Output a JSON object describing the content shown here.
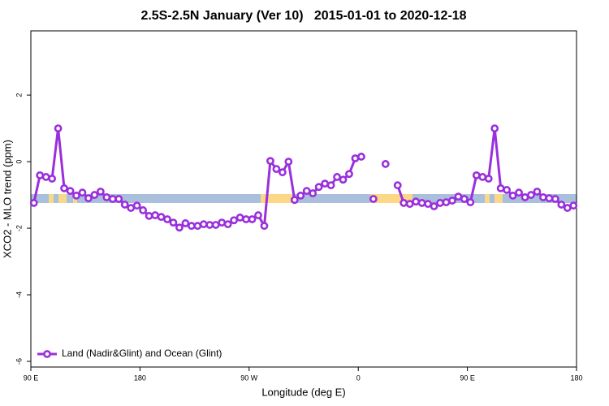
{
  "chart_data": {
    "type": "line",
    "title": "2.5S-2.5N January (Ver 10)   2015-01-01 to 2020-12-18",
    "x_label": "Longitude (deg E)",
    "y_label": "XCO2 - MLO trend (ppm)",
    "xlim": [
      90,
      540
    ],
    "ylim": [
      -6.17,
      3.93
    ],
    "xticks": [
      {
        "value": 90,
        "label": "90 E"
      },
      180,
      {
        "value": 270,
        "label": "90 W"
      },
      {
        "value": 360,
        "label": "0"
      },
      {
        "value": 450,
        "label": "90 E"
      },
      {
        "value": 540,
        "label": "180"
      }
    ],
    "yticks": [
      -6,
      -4,
      -2,
      0,
      2
    ],
    "legend": "bottom-left",
    "x": [
      92.5,
      97.5,
      102.5,
      107.5,
      112.5,
      117.5,
      122.5,
      127.5,
      132.5,
      137.5,
      142.5,
      147.5,
      152.5,
      157.5,
      162.5,
      167.5,
      172.5,
      177.5,
      182.5,
      187.5,
      192.5,
      197.5,
      202.5,
      207.5,
      212.5,
      217.5,
      222.5,
      227.5,
      232.5,
      237.5,
      242.5,
      247.5,
      252.5,
      257.5,
      262.5,
      267.5,
      272.5,
      277.5,
      282.5,
      287.5,
      292.5,
      297.5,
      302.5,
      307.5,
      312.5,
      317.5,
      322.5,
      327.5,
      332.5,
      337.5,
      342.5,
      347.5,
      352.5,
      357.5,
      362.5,
      367.5,
      372.5,
      377.5,
      382.5,
      387.5,
      392.5,
      397.5,
      402.5,
      407.5,
      412.5,
      417.5,
      422.5,
      427.5,
      432.5,
      437.5,
      442.5,
      447.5,
      452.5,
      457.5,
      462.5,
      467.5,
      472.5,
      477.5,
      482.5,
      487.5,
      492.5,
      497.5,
      502.5,
      507.5,
      512.5,
      517.5,
      522.5,
      527.5,
      532.5,
      537.5
    ],
    "series": [
      {
        "name": "Land (Nadir&Glint) and Ocean (Glint)",
        "color": "#9a2fdc",
        "values": [
          -1.24,
          -0.41,
          -0.46,
          -0.51,
          1.0,
          -0.8,
          -0.88,
          -1.02,
          -0.93,
          -1.1,
          -1.0,
          -0.9,
          -1.07,
          -1.12,
          -1.12,
          -1.29,
          -1.39,
          -1.32,
          -1.46,
          -1.63,
          -1.61,
          -1.66,
          -1.73,
          -1.83,
          -1.98,
          -1.85,
          -1.93,
          -1.93,
          -1.88,
          -1.9,
          -1.9,
          -1.83,
          -1.88,
          -1.76,
          -1.68,
          -1.73,
          -1.73,
          -1.61,
          -1.93,
          0.02,
          -0.22,
          -0.32,
          0.0,
          -1.15,
          -1.02,
          -0.88,
          -0.95,
          -0.76,
          -0.66,
          -0.71,
          -0.46,
          -0.54,
          -0.37,
          0.1,
          0.15,
          null,
          -1.12,
          null,
          -0.07,
          null,
          -0.71,
          -1.24,
          -1.27,
          -1.2,
          -1.24,
          -1.27,
          -1.34,
          -1.24,
          -1.22,
          -1.17,
          -1.05,
          -1.12,
          -1.22,
          -0.41,
          -0.46,
          -0.51,
          1.0,
          -0.8,
          -0.85,
          -1.02,
          -0.93,
          -1.07,
          -1.0,
          -0.9,
          -1.07,
          -1.1,
          -1.12,
          -1.29,
          -1.39,
          -1.32
        ]
      }
    ]
  }
}
